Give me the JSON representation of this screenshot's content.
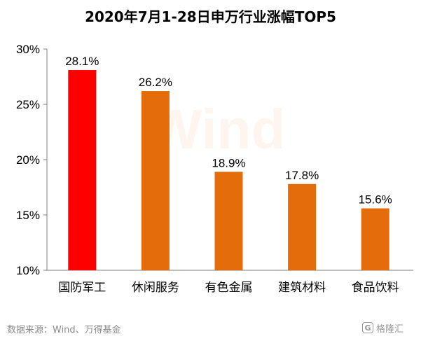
{
  "chart_data": {
    "type": "bar",
    "title": "2020年7月1-28日申万行业涨幅TOP5",
    "categories": [
      "国防军工",
      "休闲服务",
      "有色金属",
      "建筑材料",
      "食品饮料"
    ],
    "values": [
      28.1,
      26.2,
      18.9,
      17.8,
      15.6
    ],
    "data_labels": [
      "28.1%",
      "26.2%",
      "18.9%",
      "17.8%",
      "15.6%"
    ],
    "bar_colors": [
      "#ff0000",
      "#e46c0a",
      "#e46c0a",
      "#e46c0a",
      "#e46c0a"
    ],
    "ylim": [
      10,
      30
    ],
    "yticks": [
      10,
      15,
      20,
      25,
      30
    ],
    "ytick_labels": [
      "10%",
      "15%",
      "20%",
      "25%",
      "30%"
    ],
    "xlabel": "",
    "ylabel": "",
    "grid": false,
    "legend": "none"
  },
  "watermark": "Wind",
  "source_text": "数据来源：Wind、万得基金",
  "logo_text": "格隆汇",
  "logo_icon": "g-logo-icon"
}
